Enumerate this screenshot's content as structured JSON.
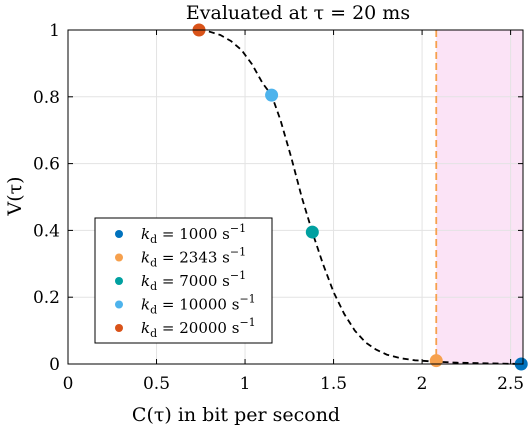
{
  "chart_data": {
    "type": "scatter",
    "title": "Evaluated at τ = 20 ms",
    "xlabel": "C(τ) in bit per second",
    "ylabel": "V(τ)",
    "xlim": [
      0,
      2.57
    ],
    "ylim": [
      0,
      1
    ],
    "x_ticks": [
      0,
      0.5,
      1,
      1.5,
      2,
      2.5
    ],
    "x_tick_labels": [
      "0",
      "0.5",
      "1",
      "1.5",
      "2",
      "2.5"
    ],
    "y_ticks": [
      0,
      0.2,
      0.4,
      0.6,
      0.8,
      1
    ],
    "y_tick_labels": [
      "0",
      "0.2",
      "0.4",
      "0.6",
      "0.8",
      "1"
    ],
    "grid": true,
    "legend_position": "bottom-left",
    "series": [
      {
        "name": "k_d = 1000 s^-1",
        "label_main": "k",
        "label_sub": "d",
        "label_val": " = 1000 s",
        "label_exp": "−1",
        "color": "#0072BD",
        "x": 2.56,
        "y": 0.0
      },
      {
        "name": "k_d = 2343 s^-1",
        "label_main": "k",
        "label_sub": "d",
        "label_val": " = 2343 s",
        "label_exp": "−1",
        "color": "#F6A04D",
        "x": 2.08,
        "y": 0.01
      },
      {
        "name": "k_d = 7000 s^-1",
        "label_main": "k",
        "label_sub": "d",
        "label_val": " = 7000 s",
        "label_exp": "−1",
        "color": "#00A0A0",
        "x": 1.38,
        "y": 0.395
      },
      {
        "name": "k_d = 10000 s^-1",
        "label_main": "k",
        "label_sub": "d",
        "label_val": " = 10000 s",
        "label_exp": "−1",
        "color": "#4DB3EC",
        "x": 1.15,
        "y": 0.805
      },
      {
        "name": "k_d = 20000 s^-1",
        "label_main": "k",
        "label_sub": "d",
        "label_val": " = 20000 s",
        "label_exp": "−1",
        "color": "#D95319",
        "x": 0.74,
        "y": 1.0
      }
    ],
    "curve": {
      "style": "dashed",
      "color": "#000000",
      "points": [
        [
          0.74,
          1.0
        ],
        [
          0.8,
          0.995
        ],
        [
          0.86,
          0.985
        ],
        [
          0.92,
          0.967
        ],
        [
          0.98,
          0.94
        ],
        [
          1.04,
          0.897
        ],
        [
          1.1,
          0.84
        ],
        [
          1.15,
          0.805
        ],
        [
          1.2,
          0.73
        ],
        [
          1.26,
          0.62
        ],
        [
          1.32,
          0.5
        ],
        [
          1.38,
          0.395
        ],
        [
          1.44,
          0.3
        ],
        [
          1.5,
          0.215
        ],
        [
          1.56,
          0.15
        ],
        [
          1.62,
          0.1
        ],
        [
          1.68,
          0.065
        ],
        [
          1.74,
          0.043
        ],
        [
          1.8,
          0.028
        ],
        [
          1.88,
          0.017
        ],
        [
          1.96,
          0.011
        ],
        [
          2.08,
          0.007
        ],
        [
          2.2,
          0.004
        ],
        [
          2.35,
          0.002
        ],
        [
          2.56,
          0.0
        ]
      ]
    },
    "threshold": {
      "x": 2.08,
      "color": "#F6A04D",
      "style": "dashed"
    },
    "shaded_region": {
      "x_from": 2.08,
      "x_to": 2.57,
      "color": "#FBE3F6"
    }
  }
}
